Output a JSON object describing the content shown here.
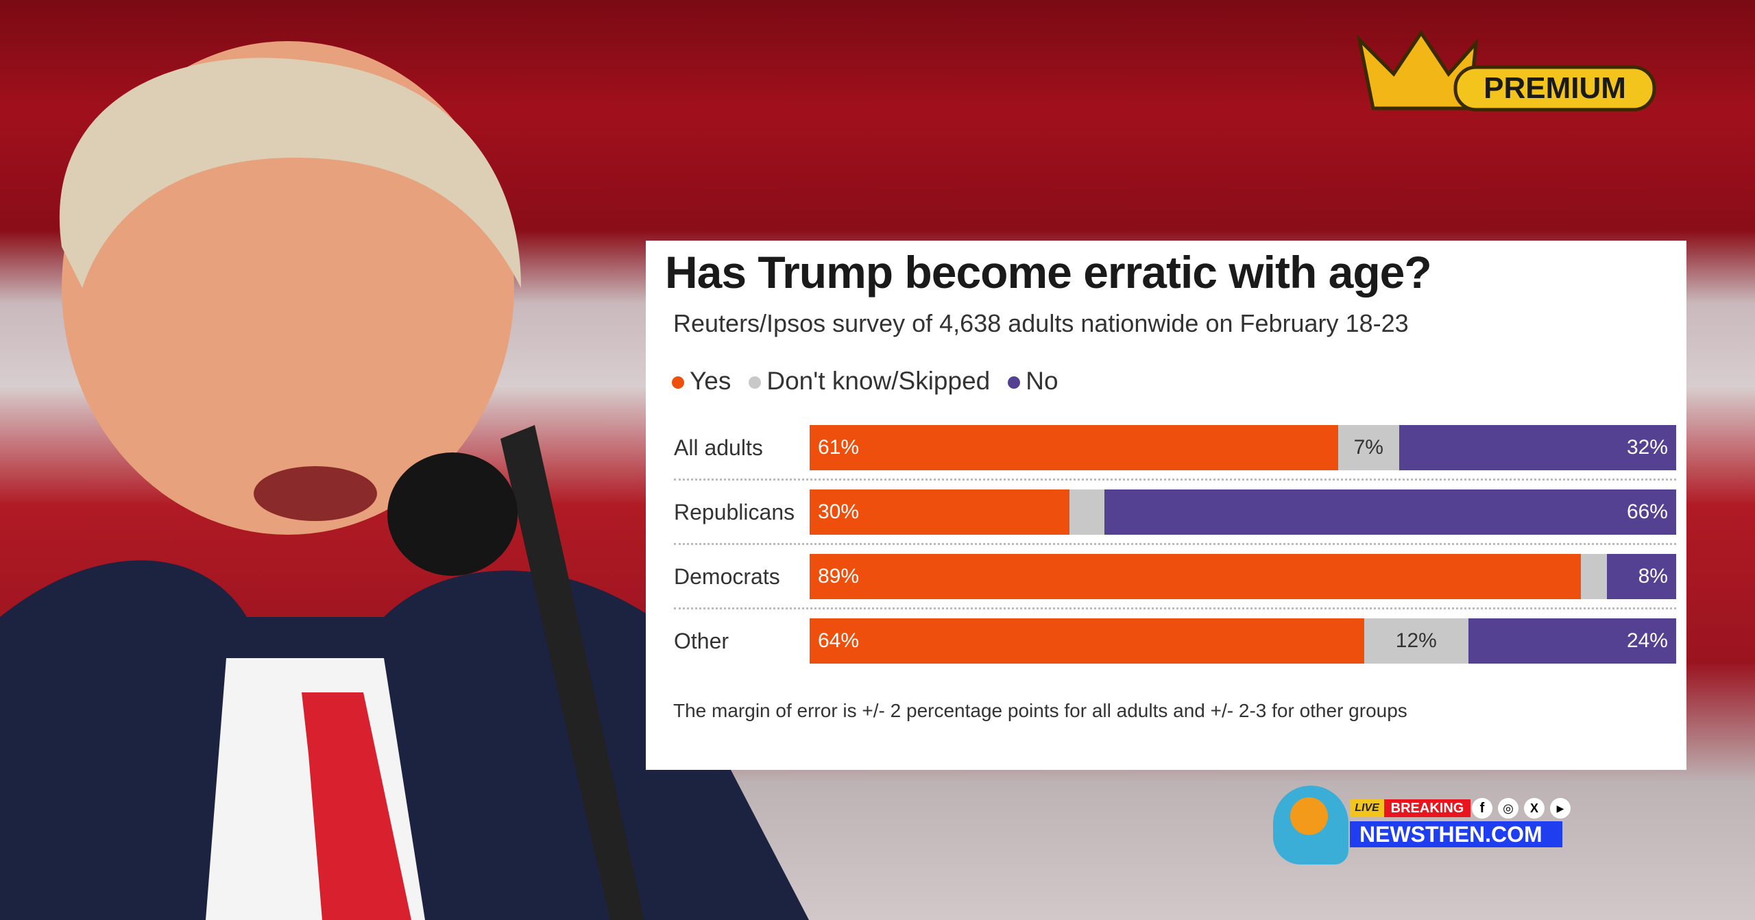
{
  "badge": {
    "premium": "PREMIUM"
  },
  "brand": {
    "live": "LIVE",
    "breaking": "BREAKING",
    "site": "NEWSTHEN.COM",
    "social_icons": [
      "facebook-icon",
      "instagram-icon",
      "x-icon",
      "youtube-icon"
    ]
  },
  "chart_data": {
    "type": "bar",
    "stacked": true,
    "orientation": "horizontal",
    "title": "Has Trump become erratic with age?",
    "subtitle": "Reuters/Ipsos survey of 4,638 adults nationwide on February 18-23",
    "legend": [
      {
        "label": "Yes",
        "color": "#ee4f0c"
      },
      {
        "label": "Don't know/Skipped",
        "color": "#c8c8c8"
      },
      {
        "label": "No",
        "color": "#544191"
      }
    ],
    "legend_placement": "top-left",
    "categories": [
      "All adults",
      "Republicans",
      "Democrats",
      "Other"
    ],
    "series": [
      {
        "name": "Yes",
        "values": [
          61,
          30,
          89,
          64
        ],
        "labels": [
          "61%",
          "30%",
          "89%",
          "64%"
        ]
      },
      {
        "name": "Don't know/Skipped",
        "values": [
          7,
          4,
          3,
          12
        ],
        "labels": [
          "7%",
          "",
          "",
          "12%"
        ]
      },
      {
        "name": "No",
        "values": [
          32,
          66,
          8,
          24
        ],
        "labels": [
          "32%",
          "66%",
          "8%",
          "24%"
        ]
      }
    ],
    "xlim": [
      0,
      100
    ],
    "note": "The margin of error is +/- 2 percentage points for all adults and +/- 2-3 for other groups"
  }
}
